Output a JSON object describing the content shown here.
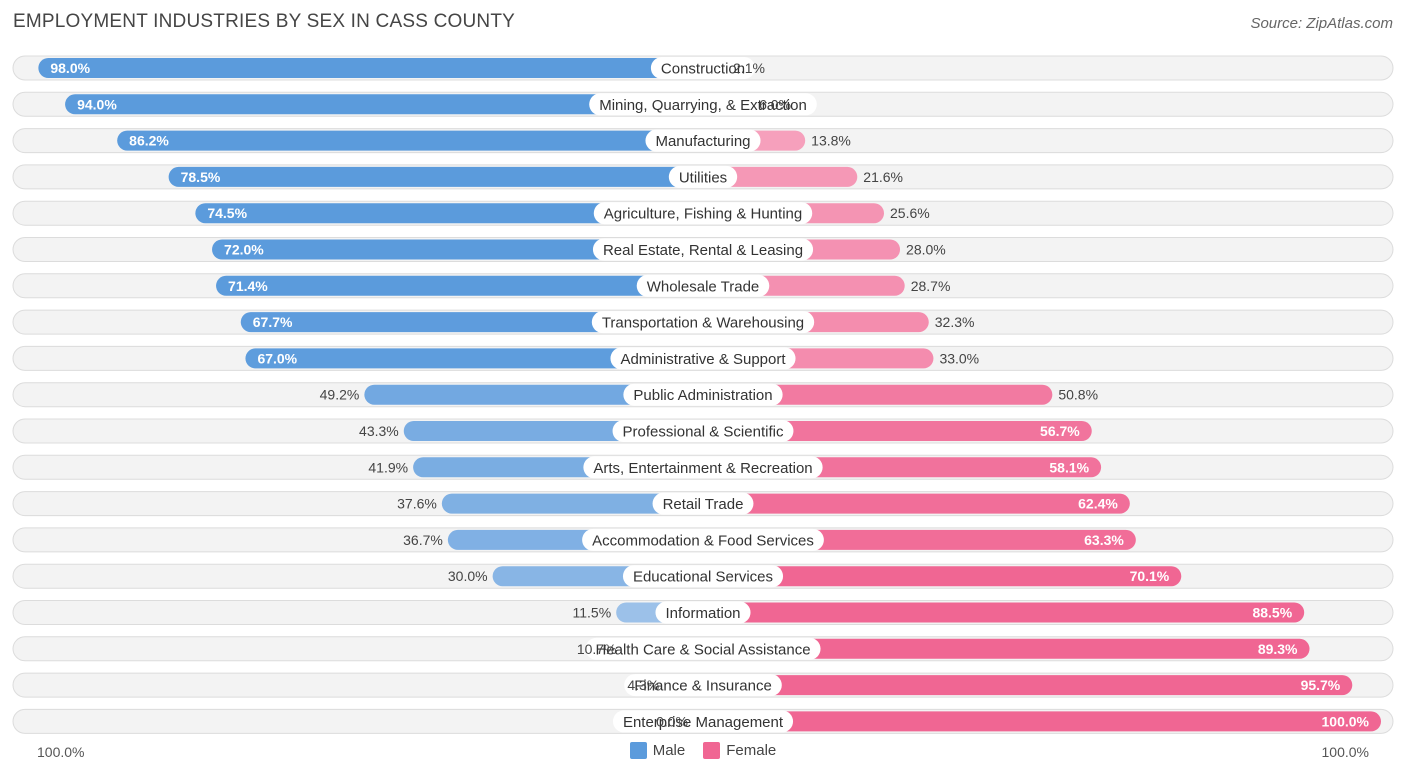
{
  "title": "EMPLOYMENT INDUSTRIES BY SEX IN CASS COUNTY",
  "source": "Source: ZipAtlas.com",
  "axis": {
    "left_label": "100.0%",
    "right_label": "100.0%"
  },
  "legend": {
    "male": {
      "label": "Male",
      "color": "#5b9bdc"
    },
    "female": {
      "label": "Female",
      "color": "#f06693"
    }
  },
  "chart_data": {
    "type": "bar",
    "orientation": "horizontal-diverging",
    "title": "EMPLOYMENT INDUSTRIES BY SEX IN CASS COUNTY",
    "xlim": [
      -100,
      100
    ],
    "categories": [
      "Construction",
      "Mining, Quarrying, & Extraction",
      "Manufacturing",
      "Utilities",
      "Agriculture, Fishing & Hunting",
      "Real Estate, Rental & Leasing",
      "Wholesale Trade",
      "Transportation & Warehousing",
      "Administrative & Support",
      "Public Administration",
      "Professional & Scientific",
      "Arts, Entertainment & Recreation",
      "Retail Trade",
      "Accommodation & Food Services",
      "Educational Services",
      "Information",
      "Health Care & Social Assistance",
      "Finance & Insurance",
      "Enterprise Management"
    ],
    "series": [
      {
        "name": "Male",
        "values": [
          98.0,
          94.0,
          86.2,
          78.5,
          74.5,
          72.0,
          71.4,
          67.7,
          67.0,
          49.2,
          43.3,
          41.9,
          37.6,
          36.7,
          30.0,
          11.5,
          10.7,
          4.3,
          0.0
        ],
        "labels": [
          "98.0%",
          "94.0%",
          "86.2%",
          "78.5%",
          "74.5%",
          "72.0%",
          "71.4%",
          "67.7%",
          "67.0%",
          "49.2%",
          "43.3%",
          "41.9%",
          "37.6%",
          "36.7%",
          "30.0%",
          "11.5%",
          "10.7%",
          "4.3%",
          "0.0%"
        ]
      },
      {
        "name": "Female",
        "values": [
          2.1,
          6.0,
          13.8,
          21.6,
          25.6,
          28.0,
          28.7,
          32.3,
          33.0,
          50.8,
          56.7,
          58.1,
          62.4,
          63.3,
          70.1,
          88.5,
          89.3,
          95.7,
          100.0
        ],
        "labels": [
          "2.1%",
          "6.0%",
          "13.8%",
          "21.6%",
          "25.6%",
          "28.0%",
          "28.7%",
          "32.3%",
          "33.0%",
          "50.8%",
          "56.7%",
          "58.1%",
          "62.4%",
          "63.3%",
          "70.1%",
          "88.5%",
          "89.3%",
          "95.7%",
          "100.0%"
        ]
      }
    ]
  }
}
